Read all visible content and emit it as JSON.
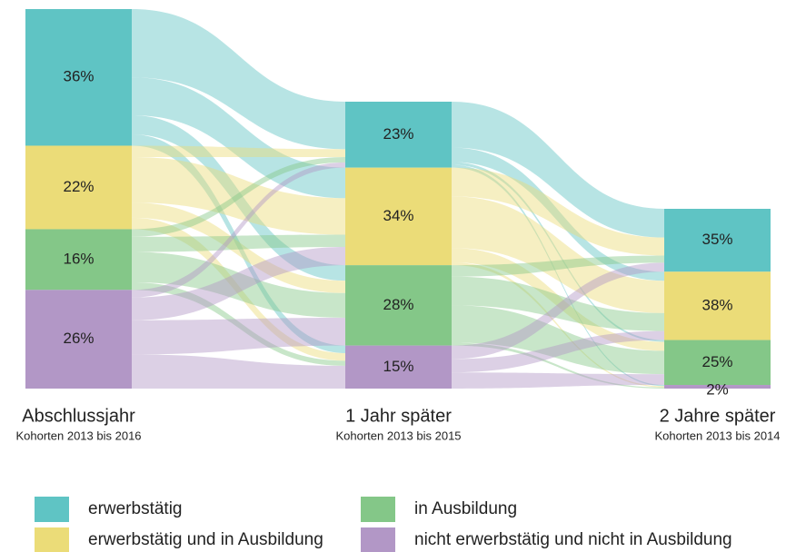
{
  "chart_data": {
    "type": "sankey",
    "categories": [
      "erwerbstätig",
      "erwerbstätig und in Ausbildung",
      "in Ausbildung",
      "nicht erwerbstätig und nicht in Ausbildung"
    ],
    "colors": [
      "#5fc4c4",
      "#ebdc78",
      "#84c788",
      "#b297c6"
    ],
    "stages": [
      {
        "label": "Abschlussjahr",
        "sublabel": "Kohorten 2013 bis 2016",
        "values": [
          36,
          22,
          16,
          26
        ],
        "value_labels": [
          "36%",
          "22%",
          "16%",
          "26%"
        ]
      },
      {
        "label": "1 Jahr später",
        "sublabel": "Kohorten 2013 bis 2015",
        "values": [
          23,
          34,
          28,
          15
        ],
        "value_labels": [
          "23%",
          "34%",
          "28%",
          "15%"
        ]
      },
      {
        "label": "2 Jahre später",
        "sublabel": "Kohorten 2013 bis 2014",
        "values": [
          35,
          38,
          25,
          2
        ],
        "value_labels": [
          "35%",
          "38%",
          "25%",
          "2%"
        ]
      }
    ],
    "flows": [
      [
        [
          18,
          10,
          5,
          3
        ],
        [
          3,
          12,
          4,
          3
        ],
        [
          2,
          4,
          8,
          2
        ],
        [
          2,
          6,
          9,
          9
        ]
      ],
      [
        [
          16,
          5,
          1,
          1
        ],
        [
          10,
          18,
          5,
          1
        ],
        [
          4,
          10,
          13,
          1
        ],
        [
          5,
          5,
          6,
          0
        ]
      ]
    ]
  }
}
